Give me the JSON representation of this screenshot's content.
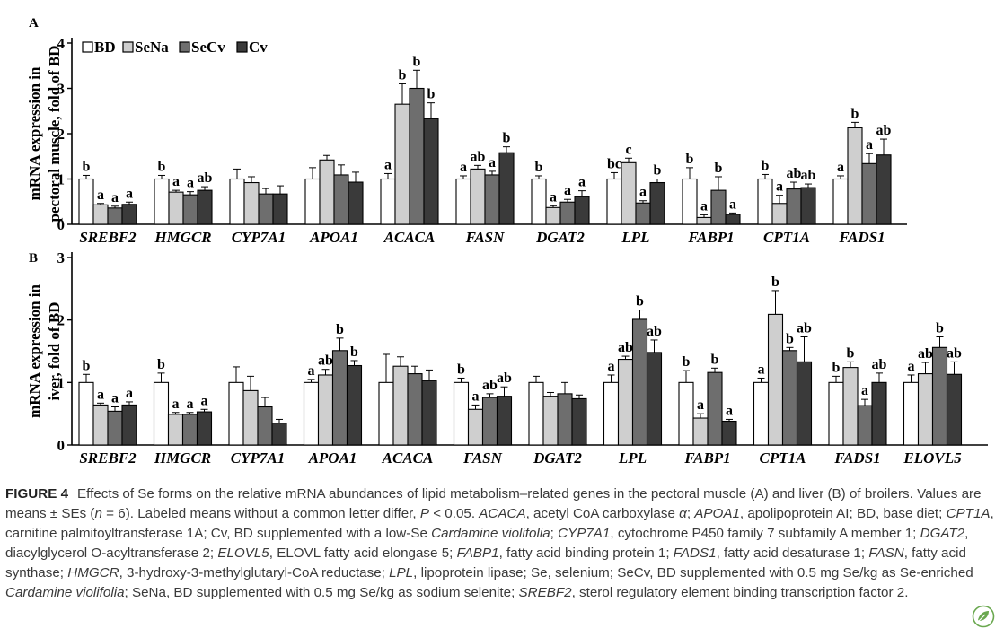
{
  "chart_data": [
    {
      "panel": "A",
      "type": "bar",
      "ylabel": "mRNA expression in pectoral muscle, fold of BD",
      "ylim": [
        0,
        4
      ],
      "yticks": [
        0,
        1,
        2,
        3,
        4
      ],
      "legend": [
        "BD",
        "SeNa",
        "SeCv",
        "Cv"
      ],
      "legend_position": "top-left",
      "categories": [
        "SREBF2",
        "HMGCR",
        "CYP7A1",
        "APOA1",
        "ACACA",
        "FASN",
        "DGAT2",
        "LPL",
        "FABP1",
        "CPT1A",
        "FADS1"
      ],
      "series": [
        {
          "name": "BD",
          "values": [
            1.0,
            1.0,
            1.0,
            1.0,
            1.0,
            1.0,
            1.0,
            1.0,
            1.0,
            1.0,
            1.0
          ],
          "errors": [
            0.08,
            0.08,
            0.22,
            0.25,
            0.12,
            0.07,
            0.07,
            0.14,
            0.25,
            0.1,
            0.07
          ]
        },
        {
          "name": "SeNa",
          "values": [
            0.43,
            0.71,
            0.92,
            1.42,
            2.65,
            1.22,
            0.37,
            1.36,
            0.15,
            0.46,
            2.13
          ],
          "errors": [
            0.03,
            0.04,
            0.13,
            0.1,
            0.45,
            0.08,
            0.04,
            0.1,
            0.06,
            0.18,
            0.12
          ]
        },
        {
          "name": "SeCv",
          "values": [
            0.36,
            0.65,
            0.67,
            1.09,
            3.0,
            1.09,
            0.49,
            0.47,
            0.75,
            0.78,
            1.34
          ],
          "errors": [
            0.04,
            0.07,
            0.12,
            0.22,
            0.4,
            0.08,
            0.06,
            0.05,
            0.3,
            0.15,
            0.22
          ]
        },
        {
          "name": "Cv",
          "values": [
            0.44,
            0.75,
            0.67,
            0.93,
            2.33,
            1.58,
            0.61,
            0.92,
            0.22,
            0.81,
            1.53
          ],
          "errors": [
            0.05,
            0.08,
            0.18,
            0.22,
            0.35,
            0.13,
            0.13,
            0.08,
            0.03,
            0.08,
            0.35
          ]
        }
      ],
      "letters": [
        [
          "b",
          "a",
          "a",
          "a"
        ],
        [
          "b",
          "a",
          "a",
          "ab"
        ],
        [
          "",
          "",
          "",
          ""
        ],
        [
          "",
          "",
          "",
          ""
        ],
        [
          "a",
          "b",
          "b",
          "b"
        ],
        [
          "a",
          "ab",
          "a",
          "b"
        ],
        [
          "b",
          "a",
          "a",
          "a"
        ],
        [
          "bc",
          "c",
          "a",
          "b"
        ],
        [
          "b",
          "a",
          "b",
          "a"
        ],
        [
          "b",
          "a",
          "ab",
          "ab"
        ],
        [
          "a",
          "b",
          "a",
          "ab"
        ]
      ]
    },
    {
      "panel": "B",
      "type": "bar",
      "ylabel": "mRNA expression in liver, fold of BD",
      "ylim": [
        0,
        3
      ],
      "yticks": [
        0,
        1,
        2,
        3
      ],
      "categories": [
        "SREBF2",
        "HMGCR",
        "CYP7A1",
        "APOA1",
        "ACACA",
        "FASN",
        "DGAT2",
        "LPL",
        "FABP1",
        "CPT1A",
        "FADS1",
        "ELOVL5"
      ],
      "series": [
        {
          "name": "BD",
          "values": [
            1.0,
            1.0,
            1.0,
            1.0,
            1.0,
            1.0,
            1.0,
            1.0,
            1.0,
            1.0,
            1.0,
            1.0
          ],
          "errors": [
            0.13,
            0.15,
            0.25,
            0.05,
            0.45,
            0.07,
            0.1,
            0.12,
            0.19,
            0.07,
            0.1,
            0.12
          ]
        },
        {
          "name": "SeNa",
          "values": [
            0.64,
            0.49,
            0.87,
            1.12,
            1.26,
            0.57,
            0.78,
            1.37,
            0.43,
            2.09,
            1.24,
            1.14
          ]
        },
        {
          "name": "SeCv",
          "values": [
            0.54,
            0.49,
            0.61,
            1.51,
            1.14,
            0.76,
            0.82,
            2.01,
            1.16,
            1.51,
            0.63,
            1.56
          ]
        },
        {
          "name": "Cv",
          "values": [
            0.64,
            0.53,
            0.35,
            1.27,
            1.03,
            0.78,
            0.74,
            1.48,
            0.38,
            1.33,
            1.0,
            1.13
          ]
        }
      ],
      "errors_by_category": [
        [
          0.13,
          0.03,
          0.07,
          0.05
        ],
        [
          0.15,
          0.03,
          0.03,
          0.04
        ],
        [
          0.25,
          0.23,
          0.15,
          0.06
        ],
        [
          0.05,
          0.09,
          0.2,
          0.08
        ],
        [
          0.45,
          0.15,
          0.12,
          0.17
        ],
        [
          0.07,
          0.07,
          0.06,
          0.15
        ],
        [
          0.1,
          0.06,
          0.18,
          0.06
        ],
        [
          0.12,
          0.05,
          0.15,
          0.2
        ],
        [
          0.19,
          0.07,
          0.07,
          0.03
        ],
        [
          0.07,
          0.38,
          0.05,
          0.4
        ],
        [
          0.1,
          0.09,
          0.1,
          0.15
        ],
        [
          0.12,
          0.18,
          0.17,
          0.2
        ]
      ],
      "letters": [
        [
          "b",
          "a",
          "a",
          "a"
        ],
        [
          "b",
          "a",
          "a",
          "a"
        ],
        [
          "",
          "",
          "",
          ""
        ],
        [
          "a",
          "ab",
          "b",
          "b"
        ],
        [
          "",
          "",
          "",
          ""
        ],
        [
          "b",
          "a",
          "ab",
          "ab"
        ],
        [
          "",
          "",
          "",
          ""
        ],
        [
          "a",
          "ab",
          "b",
          "ab"
        ],
        [
          "b",
          "a",
          "b",
          "a"
        ],
        [
          "a",
          "b",
          "b",
          "ab"
        ],
        [
          "b",
          "b",
          "a",
          "ab"
        ],
        [
          "a",
          "ab",
          "b",
          "ab"
        ]
      ]
    }
  ],
  "colors": {
    "BD": "#ffffff",
    "SeNa": "#cfcfcf",
    "SeCv": "#6e6e6e",
    "Cv": "#3a3a3a"
  },
  "caption": {
    "lead": "FIGURE 4",
    "text_html": "Effects of Se forms on the relative mRNA abundances of lipid metabolism–related genes in the pectoral muscle (A) and liver (B) of broilers. Values are means ± SEs (<i>n</i> = 6). Labeled means without a common letter differ, <i>P</i> &lt; 0.05. <i>ACACA</i>, acetyl CoA carboxylase <i>α</i>; <i>APOA1</i>, apolipoprotein AI; BD, base diet; <i>CPT1A</i>, carnitine palmitoyltransferase 1A; Cv, BD supplemented with a low-Se <i>Cardamine violifolia</i>; <i>CYP7A1</i>, cytochrome P450 family 7 subfamily A member 1; <i>DGAT2</i>, diacylglycerol O-acyltransferase 2; <i>ELOVL5</i>, ELOVL fatty acid elongase 5; <i>FABP1</i>, fatty acid binding protein 1; <i>FADS1</i>, fatty acid desaturase 1; <i>FASN</i>, fatty acid synthase; <i>HMGCR</i>, 3-hydroxy-3-methylglutaryl-CoA reductase; <i>LPL</i>, lipoprotein lipase; Se, selenium; SeCv, BD supplemented with 0.5 mg Se/kg as Se-enriched <i>Cardamine violifolia</i>; SeNa, BD supplemented with 0.5 mg Se/kg as sodium selenite; <i>SREBF2</i>, sterol regulatory element binding transcription factor 2."
  }
}
